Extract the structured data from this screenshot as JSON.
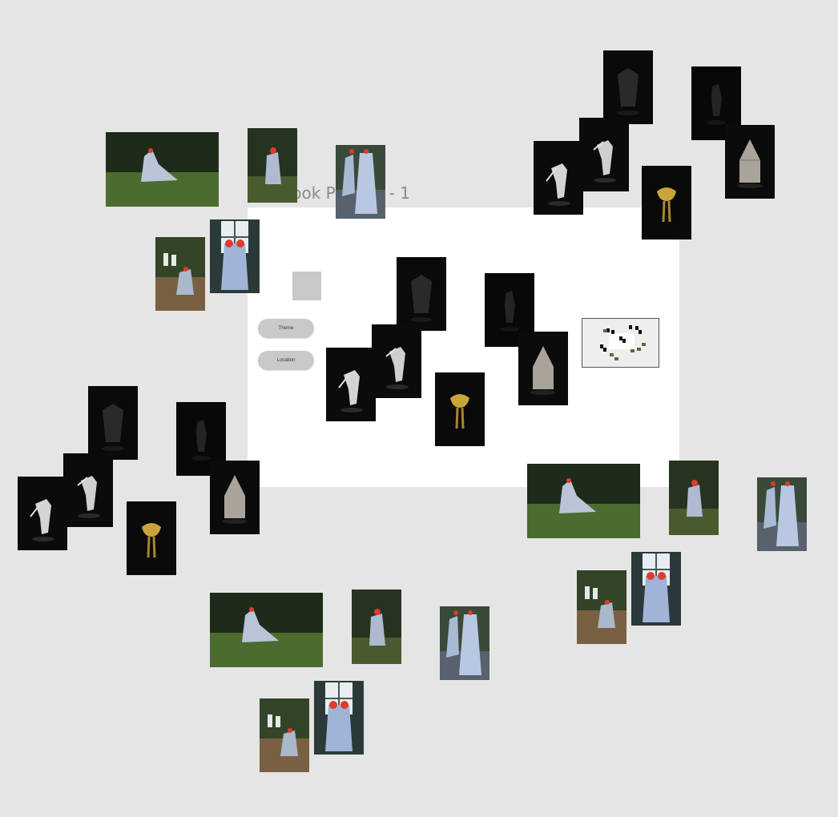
{
  "canvas": {
    "frame_title": "MacBook Pro 14\" - 1",
    "background": "#e5e5e5",
    "frame_background": "#ffffff"
  },
  "frame": {
    "buttons": {
      "theme_label": "Theme",
      "location_label": "Location"
    }
  },
  "photo_kinds": [
    "dark-studio-sculpture",
    "garden-veiled-figure"
  ]
}
